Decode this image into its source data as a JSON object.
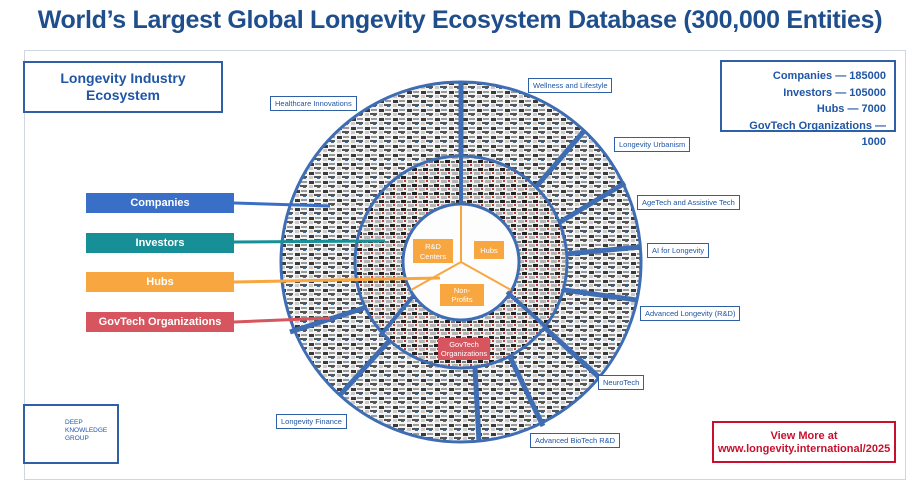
{
  "title": "World’s Largest Global Longevity Ecosystem Database (300,000 Entities)",
  "ecosystem_box": {
    "line1": "Longevity Industry",
    "line2": "Ecosystem"
  },
  "stats": [
    {
      "label": "Companies — 185000"
    },
    {
      "label": "Investors — 105000"
    },
    {
      "label": "Hubs — 7000"
    },
    {
      "label": "GovTech Organizations — 1000"
    }
  ],
  "legend": [
    {
      "label": "Companies",
      "color": "#3a6fc7"
    },
    {
      "label": "Investors",
      "color": "#178f97"
    },
    {
      "label": "Hubs",
      "color": "#f7a640"
    },
    {
      "label": "GovTech Organizations",
      "color": "#d6555e"
    }
  ],
  "segments": [
    {
      "label": "Healthcare Innovations"
    },
    {
      "label": "Wellness and Lifestyle"
    },
    {
      "label": "Longevity Urbanism"
    },
    {
      "label": "AgeTech and Assistive Tech"
    },
    {
      "label": "AI for Longevity"
    },
    {
      "label": "Advanced Longevity (R&D)"
    },
    {
      "label": "NeuroTech"
    },
    {
      "label": "Advanced BioTech R&D"
    },
    {
      "label": "Longevity Finance"
    }
  ],
  "center": {
    "rd_line1": "R&D",
    "rd_line2": "Centers",
    "hubs": "Hubs",
    "np_line1": "Non-",
    "np_line2": "Profits",
    "gov_line1": "GovTech",
    "gov_line2": "Organizations"
  },
  "logo": {
    "line1": "DEEP",
    "line2": "KNOWLEDGE",
    "line3": "GROUP"
  },
  "view_more": {
    "line1": "View More at",
    "line2": "www.longevity.international/2025"
  },
  "colors": {
    "accent": "#1f56a5",
    "ring": "#3f6db3",
    "red": "#c8102e"
  }
}
